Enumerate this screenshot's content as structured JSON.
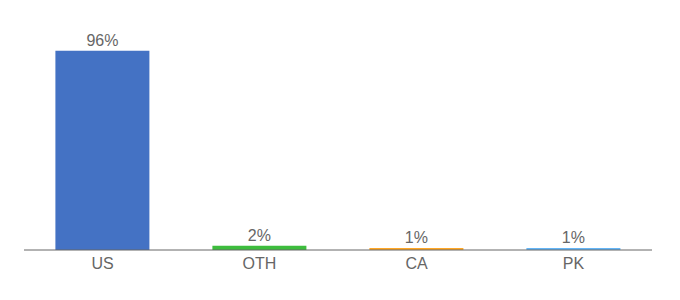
{
  "chart_data": {
    "type": "bar",
    "categories": [
      "US",
      "OTH",
      "CA",
      "PK"
    ],
    "values": [
      96,
      2,
      1,
      1
    ],
    "value_labels": [
      "96%",
      "2%",
      "1%",
      "1%"
    ],
    "colors": [
      "#4472C4",
      "#3DBD3D",
      "#FFA726",
      "#64B5F6"
    ],
    "ylim": [
      0,
      105
    ],
    "grid": false,
    "data_labels": true,
    "tick_labels": "x"
  }
}
